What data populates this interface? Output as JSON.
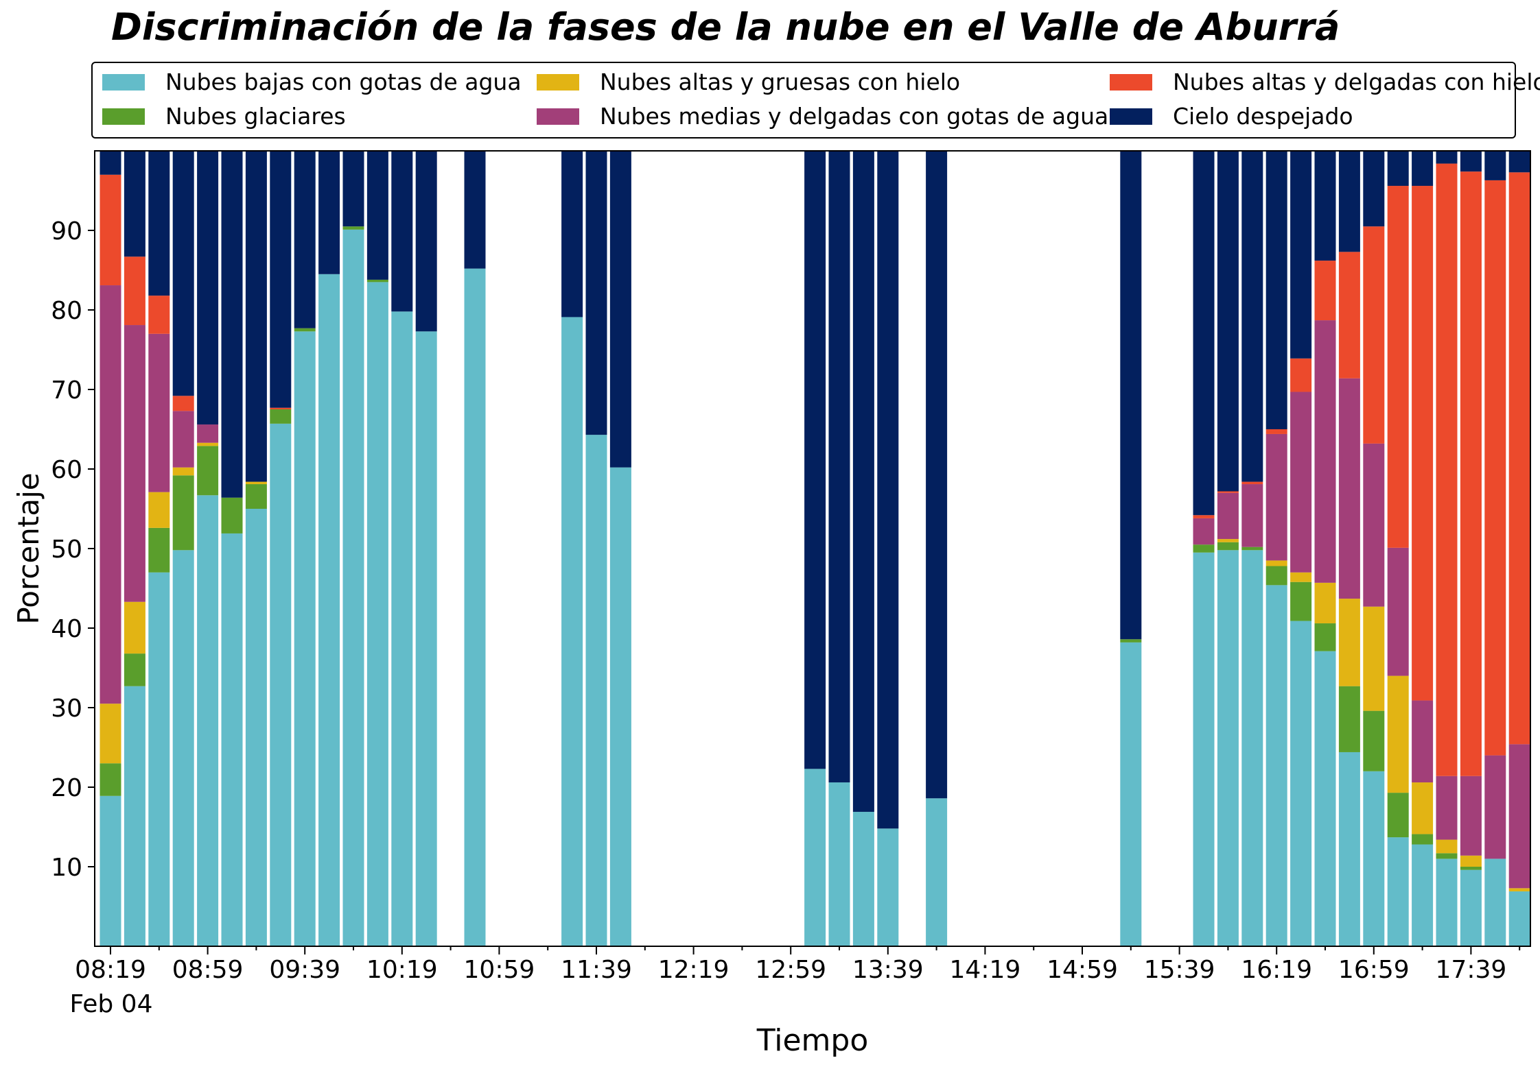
{
  "chart_data": {
    "type": "bar",
    "stacked": true,
    "title": "Discriminación de la fases de la nube en el Valle de Aburrá",
    "xlabel": "Tiempo",
    "ylabel": "Porcentaje",
    "ylim": [
      0,
      100
    ],
    "yticks": [
      10,
      20,
      30,
      40,
      50,
      60,
      70,
      80,
      90
    ],
    "xtick_labels": [
      "08:19",
      "08:59",
      "09:39",
      "10:19",
      "10:59",
      "11:39",
      "12:19",
      "12:59",
      "13:39",
      "14:19",
      "14:59",
      "15:39",
      "16:19",
      "16:59",
      "17:39"
    ],
    "date_label": "Feb 04",
    "legend_position": "top",
    "grid": false,
    "categories": [
      "08:19",
      "08:29",
      "08:39",
      "08:49",
      "08:59",
      "09:09",
      "09:19",
      "09:29",
      "09:39",
      "09:49",
      "09:59",
      "10:09",
      "10:19",
      "10:29",
      "10:39",
      "10:49",
      "10:59",
      "11:09",
      "11:19",
      "11:29",
      "11:39",
      "11:49",
      "11:59",
      "12:09",
      "12:19",
      "12:29",
      "12:39",
      "12:49",
      "12:59",
      "13:09",
      "13:19",
      "13:29",
      "13:39",
      "13:49",
      "13:59",
      "14:09",
      "14:19",
      "14:29",
      "14:39",
      "14:49",
      "14:59",
      "15:09",
      "15:19",
      "15:29",
      "15:39",
      "15:49",
      "15:59",
      "16:09",
      "16:19",
      "16:29",
      "16:39",
      "16:49",
      "16:59",
      "17:09",
      "17:19",
      "17:29",
      "17:39",
      "17:49",
      "17:59"
    ],
    "series": [
      {
        "name": "Nubes bajas con gotas de agua",
        "color": "#63bcc9",
        "values": [
          18.9,
          32.7,
          47.0,
          49.8,
          56.7,
          51.9,
          55.0,
          65.7,
          77.3,
          84.5,
          90.1,
          83.5,
          79.8,
          77.3,
          null,
          85.2,
          null,
          null,
          null,
          79.1,
          64.3,
          60.2,
          null,
          null,
          null,
          null,
          null,
          null,
          null,
          22.3,
          20.6,
          16.9,
          14.8,
          null,
          18.6,
          null,
          null,
          null,
          null,
          null,
          null,
          null,
          38.2,
          null,
          null,
          49.5,
          49.8,
          49.8,
          45.4,
          40.9,
          37.1,
          24.4,
          22.0,
          13.7,
          12.8,
          11.0,
          9.6,
          11.0,
          6.9
        ]
      },
      {
        "name": "Nubes glaciares",
        "color": "#5a9e2c",
        "values": [
          4.1,
          4.1,
          5.6,
          9.4,
          6.2,
          4.5,
          3.1,
          1.8,
          0.4,
          0,
          0.4,
          0.3,
          0,
          0,
          null,
          0,
          null,
          null,
          null,
          0,
          0,
          0,
          null,
          null,
          null,
          null,
          null,
          null,
          null,
          0,
          0,
          0,
          0,
          null,
          0,
          null,
          null,
          null,
          null,
          null,
          null,
          null,
          0.4,
          null,
          null,
          1.0,
          1.0,
          0.4,
          2.4,
          4.9,
          3.5,
          8.3,
          7.6,
          5.6,
          1.3,
          0.7,
          0.4,
          0,
          0
        ]
      },
      {
        "name": "Nubes altas y gruesas con hielo",
        "color": "#e2b414",
        "values": [
          7.5,
          6.5,
          4.5,
          1.0,
          0.4,
          0,
          0.3,
          0,
          0,
          0,
          0,
          0,
          0,
          0,
          null,
          0,
          null,
          null,
          null,
          0,
          0,
          0,
          null,
          null,
          null,
          null,
          null,
          null,
          null,
          0,
          0,
          0,
          0,
          null,
          0,
          null,
          null,
          null,
          null,
          null,
          null,
          null,
          0,
          null,
          null,
          0,
          0.4,
          0,
          0.7,
          1.2,
          5.1,
          11.0,
          13.1,
          14.7,
          6.5,
          1.7,
          1.4,
          0,
          0.4
        ]
      },
      {
        "name": "Nubes medias y delgadas con gotas de agua",
        "color": "#a23f79",
        "values": [
          52.6,
          34.8,
          19.9,
          7.1,
          2.3,
          0,
          0,
          0,
          0,
          0,
          0,
          0,
          0,
          0,
          null,
          0,
          null,
          null,
          null,
          0,
          0,
          0,
          null,
          null,
          null,
          null,
          null,
          null,
          null,
          0,
          0,
          0,
          0,
          null,
          0,
          null,
          null,
          null,
          null,
          null,
          null,
          null,
          0,
          null,
          null,
          3.3,
          5.8,
          7.9,
          15.9,
          22.7,
          33.0,
          27.7,
          20.5,
          16.1,
          10.3,
          8.0,
          10.0,
          13.0,
          18.1
        ]
      },
      {
        "name": "Nubes altas y delgadas con hielo",
        "color": "#ec4a2c",
        "values": [
          13.9,
          8.6,
          4.8,
          1.9,
          0,
          0,
          0,
          0.2,
          0,
          0,
          0,
          0,
          0,
          0,
          null,
          0,
          null,
          null,
          null,
          0,
          0,
          0,
          null,
          null,
          null,
          null,
          null,
          null,
          null,
          0,
          0,
          0,
          0,
          null,
          0,
          null,
          null,
          null,
          null,
          null,
          null,
          null,
          0,
          null,
          null,
          0.4,
          0.2,
          0.3,
          0.6,
          4.2,
          7.5,
          15.9,
          27.3,
          45.5,
          64.7,
          77.0,
          76.0,
          72.3,
          71.9
        ]
      },
      {
        "name": "Cielo despejado",
        "color": "#03205e",
        "values": [
          3.0,
          13.3,
          18.2,
          30.8,
          34.4,
          43.6,
          41.6,
          32.3,
          22.3,
          15.5,
          9.5,
          16.2,
          20.2,
          22.7,
          null,
          14.8,
          null,
          null,
          null,
          20.9,
          35.7,
          39.8,
          null,
          null,
          null,
          null,
          null,
          null,
          null,
          77.7,
          79.4,
          83.1,
          85.2,
          null,
          81.4,
          null,
          null,
          null,
          null,
          null,
          null,
          null,
          61.4,
          null,
          null,
          45.8,
          42.8,
          41.6,
          35.0,
          26.1,
          13.8,
          12.7,
          9.5,
          4.4,
          4.4,
          1.6,
          2.6,
          3.7,
          2.7
        ]
      }
    ]
  }
}
